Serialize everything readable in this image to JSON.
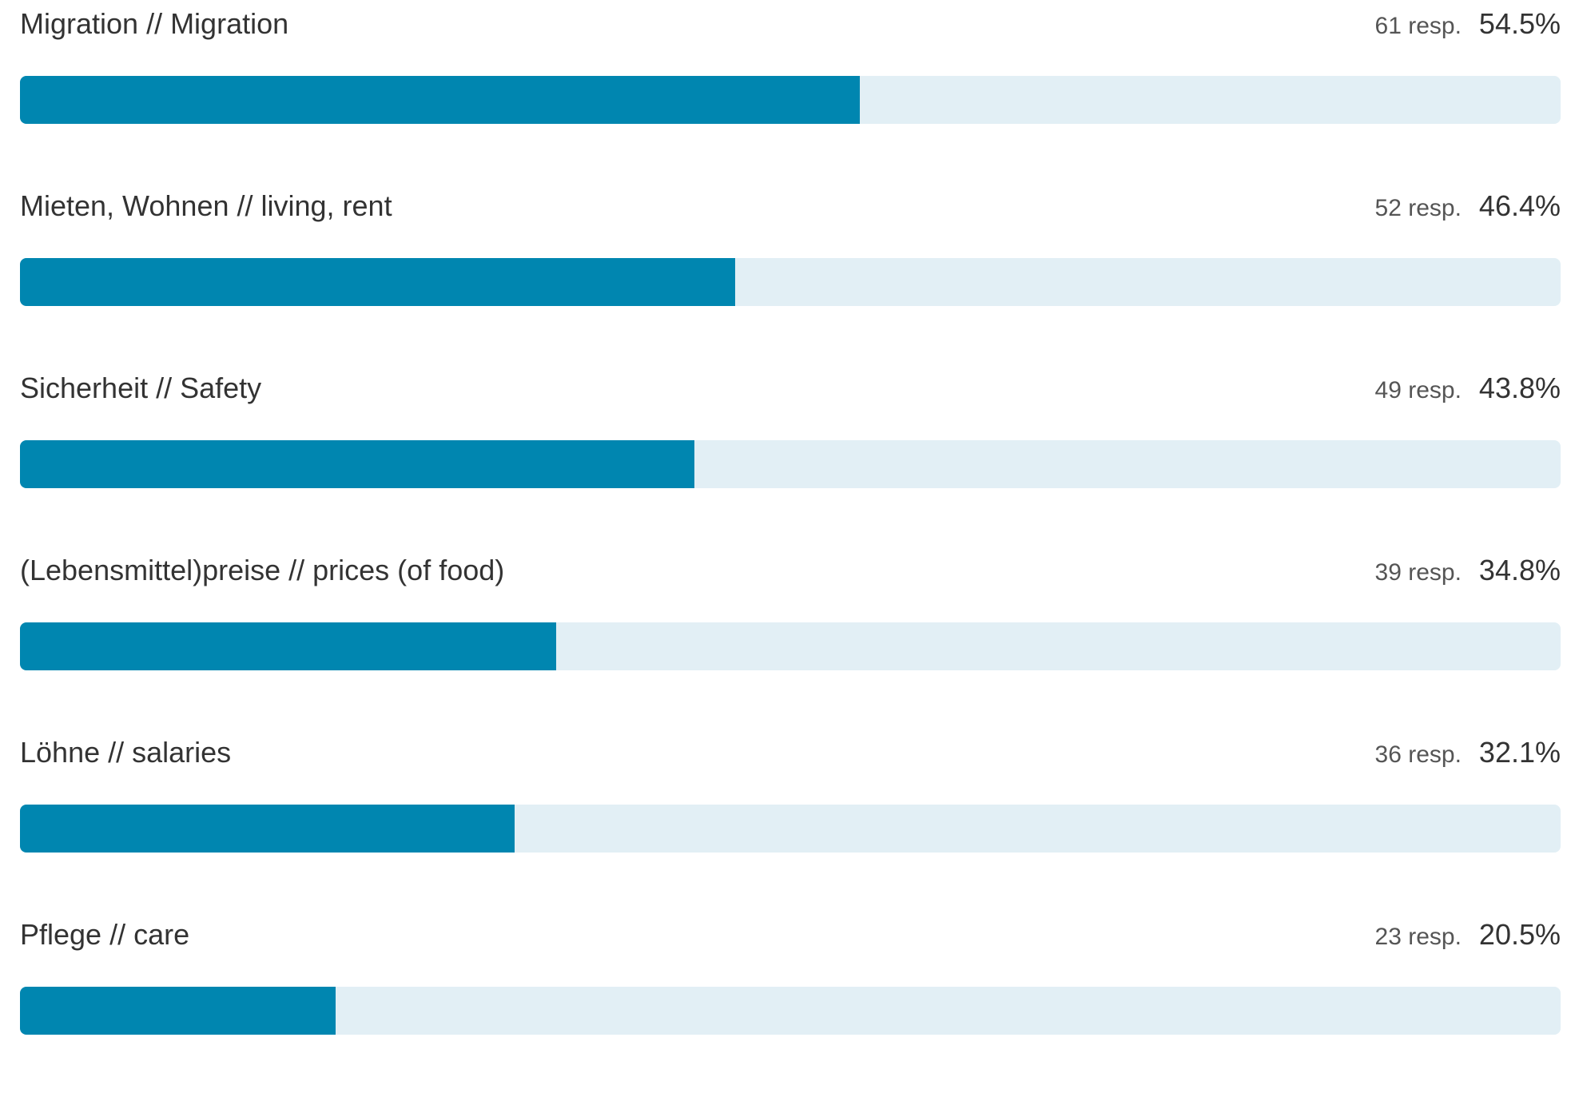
{
  "colors": {
    "bar_fill": "#0086B0",
    "bar_track": "#E2EFF5"
  },
  "chart_data": {
    "type": "bar",
    "orientation": "horizontal",
    "categories": [
      "Migration // Migration",
      "Mieten, Wohnen // living, rent",
      "Sicherheit // Safety",
      "(Lebensmittel)preise // prices (of food)",
      "Löhne // salaries",
      "Pflege // care"
    ],
    "series": [
      {
        "values": [
          54.5,
          46.4,
          43.8,
          34.8,
          32.1,
          20.5
        ]
      }
    ],
    "xlim": [
      0,
      100
    ],
    "grid": false,
    "rows": [
      {
        "label": "Migration // Migration",
        "count_text": "61 resp.",
        "pct_text": "54.5%",
        "value": 54.5
      },
      {
        "label": "Mieten, Wohnen // living, rent",
        "count_text": "52 resp.",
        "pct_text": "46.4%",
        "value": 46.4
      },
      {
        "label": "Sicherheit // Safety",
        "count_text": "49 resp.",
        "pct_text": "43.8%",
        "value": 43.8
      },
      {
        "label": "(Lebensmittel)preise // prices (of food)",
        "count_text": "39 resp.",
        "pct_text": "34.8%",
        "value": 34.8
      },
      {
        "label": "Löhne // salaries",
        "count_text": "36 resp.",
        "pct_text": "32.1%",
        "value": 32.1
      },
      {
        "label": "Pflege // care",
        "count_text": "23 resp.",
        "pct_text": "20.5%",
        "value": 20.5
      }
    ]
  }
}
